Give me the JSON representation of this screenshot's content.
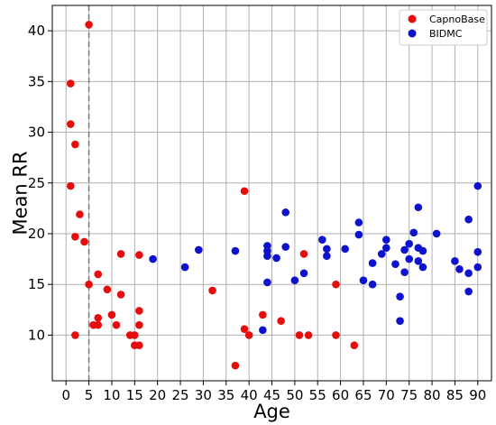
{
  "chart_data": {
    "type": "scatter",
    "xlabel": "Age",
    "ylabel": "Mean RR",
    "xlim": [
      -3,
      93
    ],
    "ylim": [
      5.5,
      42.5
    ],
    "xticks": [
      0,
      5,
      10,
      15,
      20,
      25,
      30,
      35,
      40,
      45,
      50,
      55,
      60,
      65,
      70,
      75,
      80,
      85,
      90
    ],
    "yticks": [
      10,
      15,
      20,
      25,
      30,
      35,
      40
    ],
    "grid": true,
    "reference_line": {
      "orientation": "vertical",
      "x": 5,
      "style": "dashed",
      "color": "#7a7a7a"
    },
    "legend": {
      "placement": "top-right",
      "entries": [
        "CapnoBase",
        "BIDMC"
      ]
    },
    "series": [
      {
        "name": "CapnoBase",
        "color": "#e60d0d",
        "points": [
          [
            1,
            34.8
          ],
          [
            1,
            30.8
          ],
          [
            1,
            24.7
          ],
          [
            2,
            28.8
          ],
          [
            2,
            19.7
          ],
          [
            2,
            10.0
          ],
          [
            3,
            21.9
          ],
          [
            4,
            19.2
          ],
          [
            5,
            40.6
          ],
          [
            5,
            15.0
          ],
          [
            6,
            11.0
          ],
          [
            7,
            16.0
          ],
          [
            7,
            11.7
          ],
          [
            7,
            11.0
          ],
          [
            9,
            14.5
          ],
          [
            10,
            12.0
          ],
          [
            11,
            11.0
          ],
          [
            12,
            18.0
          ],
          [
            12,
            14.0
          ],
          [
            14,
            10.0
          ],
          [
            15,
            10.0
          ],
          [
            15,
            9.0
          ],
          [
            16,
            17.9
          ],
          [
            16,
            12.4
          ],
          [
            16,
            11.0
          ],
          [
            16,
            9.0
          ],
          [
            32,
            14.4
          ],
          [
            37,
            7.0
          ],
          [
            39,
            24.2
          ],
          [
            39,
            10.6
          ],
          [
            40,
            10.0
          ],
          [
            43,
            12.0
          ],
          [
            47,
            11.4
          ],
          [
            51,
            10.0
          ],
          [
            52,
            18.0
          ],
          [
            53,
            10.0
          ],
          [
            59,
            15.0
          ],
          [
            59,
            10.0
          ],
          [
            63,
            9.0
          ]
        ]
      },
      {
        "name": "BIDMC",
        "color": "#0d12cc",
        "points": [
          [
            19,
            17.5
          ],
          [
            26,
            16.7
          ],
          [
            29,
            18.4
          ],
          [
            37,
            18.3
          ],
          [
            43,
            10.5
          ],
          [
            44,
            18.8
          ],
          [
            44,
            18.3
          ],
          [
            44,
            17.8
          ],
          [
            44,
            15.2
          ],
          [
            46,
            17.6
          ],
          [
            48,
            22.1
          ],
          [
            48,
            18.7
          ],
          [
            50,
            15.4
          ],
          [
            52,
            16.1
          ],
          [
            56,
            19.4
          ],
          [
            57,
            18.5
          ],
          [
            57,
            17.8
          ],
          [
            61,
            18.5
          ],
          [
            64,
            21.1
          ],
          [
            64,
            19.9
          ],
          [
            65,
            15.4
          ],
          [
            67,
            17.1
          ],
          [
            67,
            15.0
          ],
          [
            69,
            18.0
          ],
          [
            70,
            19.4
          ],
          [
            70,
            18.6
          ],
          [
            72,
            17.0
          ],
          [
            73,
            13.8
          ],
          [
            73,
            11.4
          ],
          [
            74,
            18.4
          ],
          [
            74,
            16.2
          ],
          [
            75,
            19.0
          ],
          [
            75,
            17.5
          ],
          [
            76,
            20.1
          ],
          [
            77,
            22.6
          ],
          [
            77,
            18.6
          ],
          [
            77,
            17.3
          ],
          [
            78,
            18.3
          ],
          [
            78,
            16.7
          ],
          [
            81,
            20.0
          ],
          [
            85,
            17.3
          ],
          [
            86,
            16.5
          ],
          [
            88,
            21.4
          ],
          [
            88,
            16.1
          ],
          [
            88,
            14.3
          ],
          [
            90,
            24.7
          ],
          [
            90,
            18.2
          ],
          [
            90,
            16.7
          ]
        ]
      }
    ]
  }
}
